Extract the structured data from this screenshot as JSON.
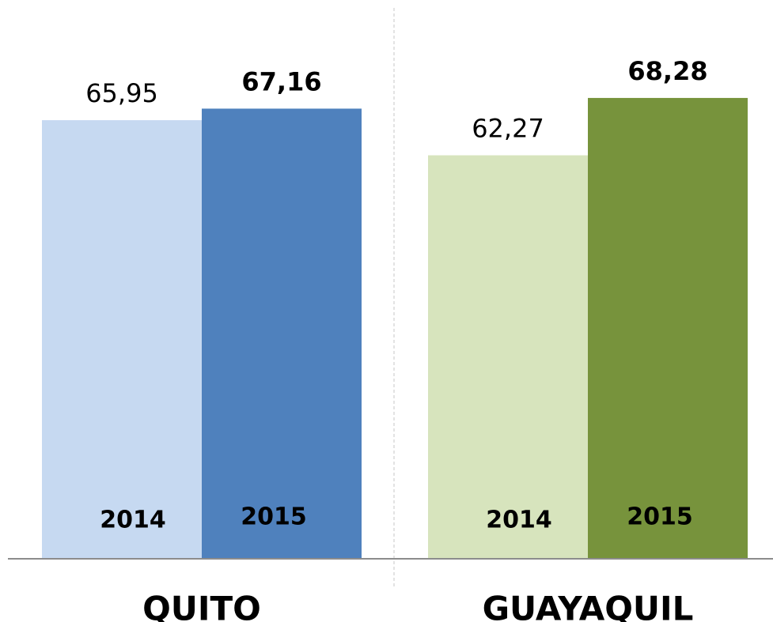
{
  "chart_data": {
    "type": "bar",
    "categories": [
      "QUITO",
      "GUAYAQUIL"
    ],
    "series": [
      {
        "name": "2014",
        "colors": [
          "#c6d9f1",
          "#d7e4bd"
        ],
        "values": [
          65.95,
          62.27
        ],
        "value_labels": [
          "65,95",
          "62,27"
        ]
      },
      {
        "name": "2015",
        "colors": [
          "#4f81bd",
          "#77933c"
        ],
        "values": [
          67.16,
          68.28
        ],
        "value_labels": [
          "67,16",
          "68,28"
        ]
      }
    ],
    "ylim": [
      20,
      72
    ]
  }
}
